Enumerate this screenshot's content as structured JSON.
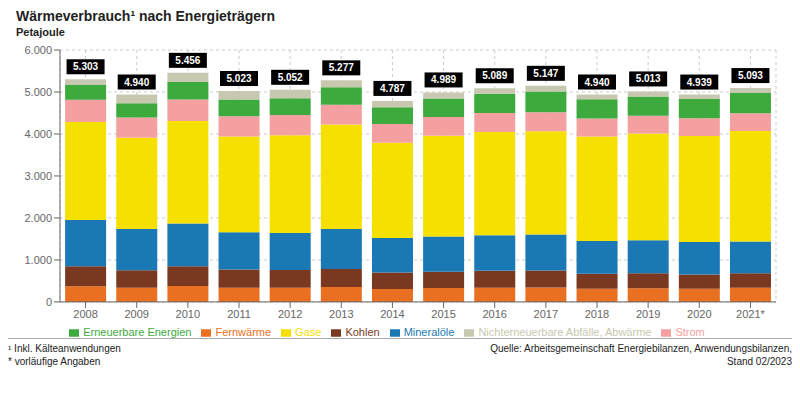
{
  "chart_data": {
    "type": "bar",
    "title": "Wärmeverbrauch¹ nach Energieträgern",
    "ylabel": "Petajoule",
    "stacked": true,
    "grid": true,
    "legend": "bottom",
    "categories": [
      "2008",
      "2009",
      "2010",
      "2011",
      "2012",
      "2013",
      "2014",
      "2015",
      "2016",
      "2017",
      "2018",
      "2019",
      "2020",
      "2021*"
    ],
    "series": [
      {
        "name": "Fernwärme",
        "color": "#e87020",
        "values": [
          370,
          335,
          380,
          340,
          340,
          355,
          310,
          330,
          340,
          345,
          315,
          325,
          315,
          340
        ]
      },
      {
        "name": "Kohlen",
        "color": "#7b3820",
        "values": [
          480,
          420,
          470,
          430,
          420,
          430,
          390,
          390,
          400,
          405,
          355,
          355,
          335,
          345
        ]
      },
      {
        "name": "Mineralöle",
        "color": "#1a78b4",
        "values": [
          1100,
          980,
          1020,
          890,
          880,
          950,
          820,
          840,
          845,
          855,
          780,
          790,
          775,
          755
        ]
      },
      {
        "name": "Gase",
        "color": "#f5e000",
        "values": [
          2333,
          2175,
          2440,
          2280,
          2330,
          2490,
          2270,
          2400,
          2460,
          2460,
          2490,
          2540,
          2525,
          2630
        ]
      },
      {
        "name": "Strom",
        "color": "#f5a0a0",
        "values": [
          530,
          480,
          510,
          480,
          480,
          470,
          445,
          445,
          455,
          455,
          430,
          425,
          425,
          425
        ]
      },
      {
        "name": "Erneuerbare Energien",
        "color": "#3daa3d",
        "values": [
          355,
          340,
          415,
          400,
          400,
          415,
          400,
          440,
          455,
          490,
          455,
          460,
          460,
          480
        ]
      },
      {
        "name": "Nichterneuerbare Abfälle, Abwärme",
        "color": "#c8c8b0",
        "values": [
          135,
          210,
          221,
          203,
          202,
          167,
          152,
          144,
          134,
          137,
          115,
          118,
          104,
          118
        ]
      }
    ],
    "totals": [
      5303,
      4940,
      5456,
      5023,
      5052,
      5277,
      4787,
      4989,
      5089,
      5147,
      4940,
      5013,
      4939,
      5093
    ],
    "total_labels": [
      "5.303",
      "4.940",
      "5.456",
      "5.023",
      "5.052",
      "5.277",
      "4.787",
      "4.989",
      "5.089",
      "5.147",
      "4.940",
      "5.013",
      "4.939",
      "5.093"
    ],
    "ylim": [
      0,
      6000
    ],
    "yticks": [
      0,
      {
        "value": 1000,
        "label": "1.000"
      },
      {
        "value": 2000,
        "label": "2.000"
      },
      {
        "value": 3000,
        "label": "3.000"
      },
      {
        "value": 4000,
        "label": "4.000"
      },
      {
        "value": 5000,
        "label": "5.000"
      },
      {
        "value": 6000,
        "label": "6.000"
      }
    ],
    "footnotes": [
      "¹ Inkl. Kälteanwendungen",
      "* vorläufige Angaben"
    ],
    "source": "Quelle: Arbeitsgemeinschaft Energiebilanzen, Anwendungsbilanzen,\nStand 02/2023"
  }
}
